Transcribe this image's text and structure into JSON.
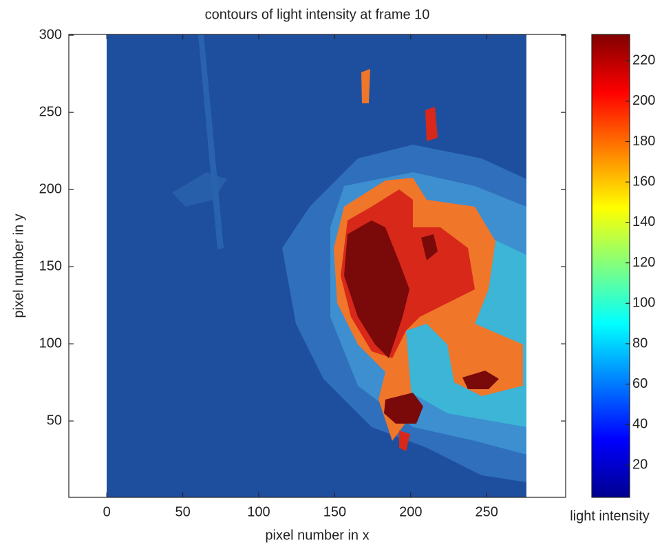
{
  "chart_data": {
    "type": "heatmap",
    "title": "contours of light intensity at frame 10",
    "x_label": "pixel number in x",
    "y_label": "pixel number in y",
    "colorbar_label": "light intensity",
    "colormap": "jet",
    "xlim": [
      -25,
      302
    ],
    "xticks": [
      0,
      50,
      100,
      150,
      200,
      250
    ],
    "ylim": [
      0.5,
      300.5
    ],
    "yticks": [
      50,
      100,
      150,
      200,
      250,
      300
    ],
    "clim": [
      4,
      233
    ],
    "cticks": [
      20,
      40,
      60,
      80,
      100,
      120,
      140,
      160,
      180,
      200,
      220
    ]
  }
}
